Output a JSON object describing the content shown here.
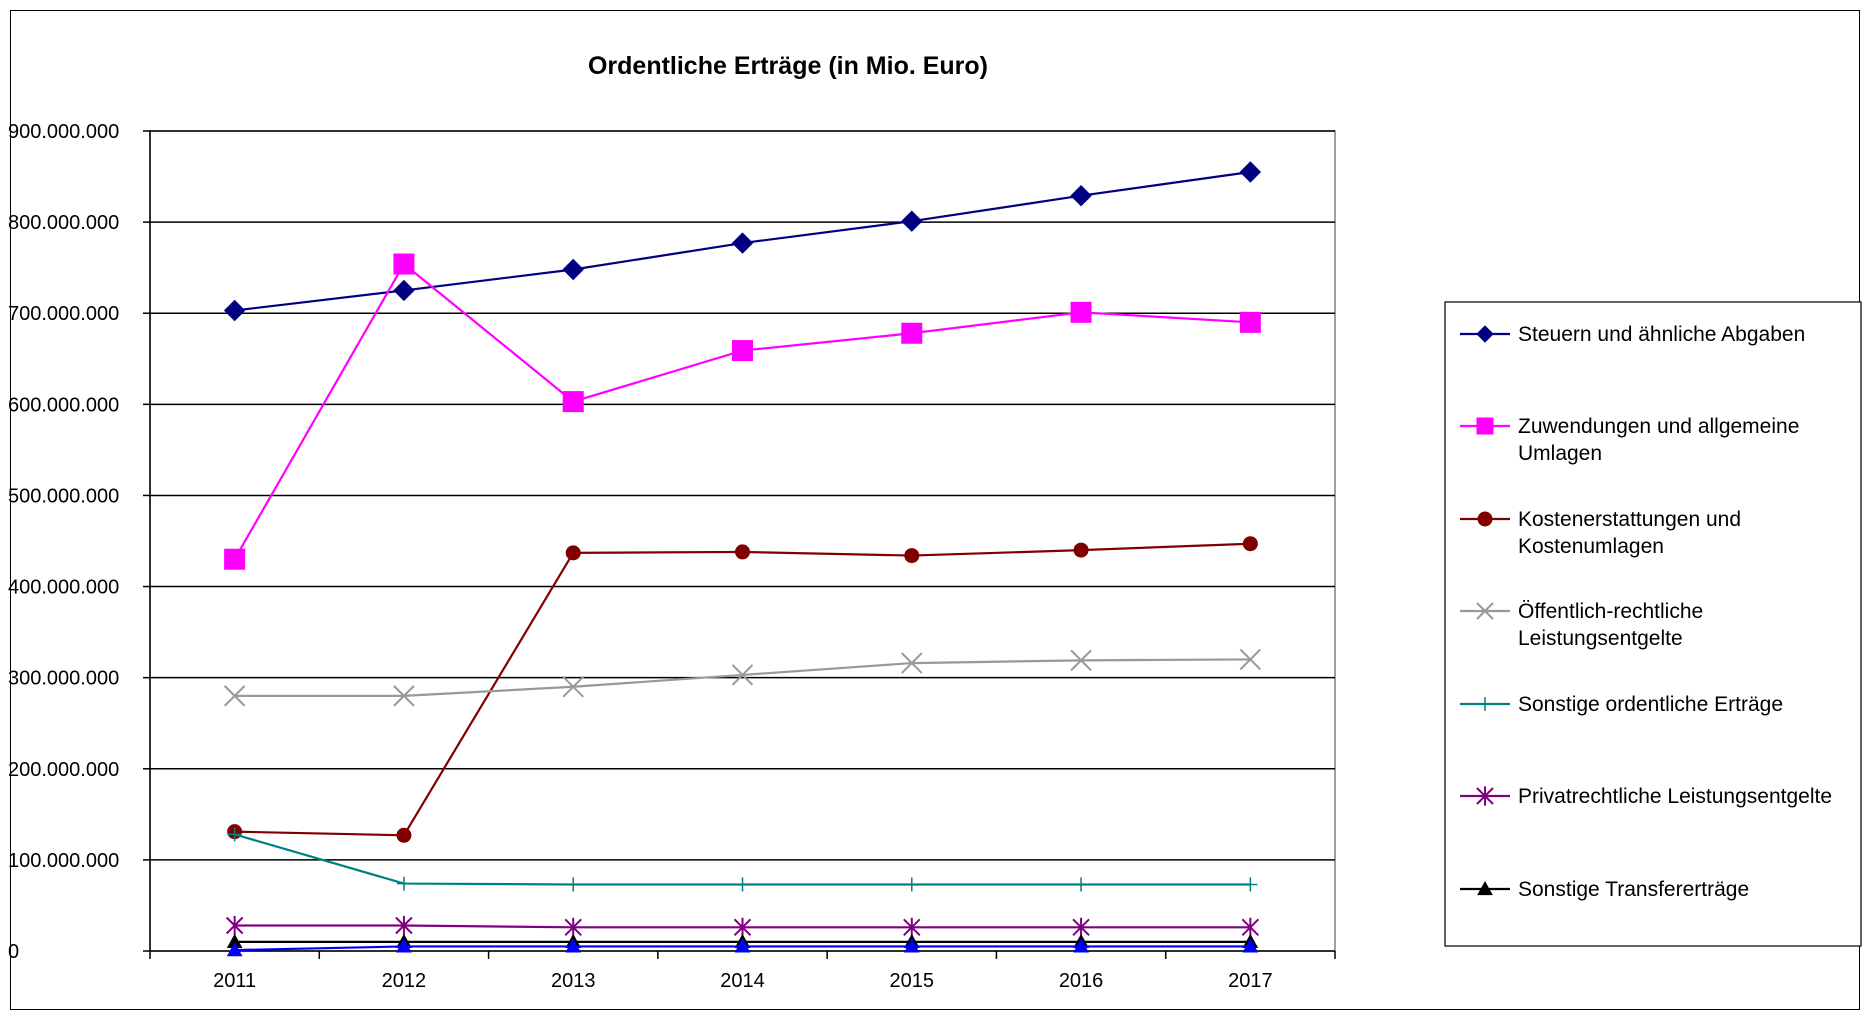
{
  "chart_data": {
    "type": "line",
    "title": "Ordentliche Erträge (in Mio. Euro)",
    "xlabel": "",
    "ylabel": "",
    "ylim": [
      0,
      900000000
    ],
    "y_ticks": [
      0,
      100000000,
      200000000,
      300000000,
      400000000,
      500000000,
      600000000,
      700000000,
      800000000,
      900000000
    ],
    "y_tick_labels": [
      "0",
      "100.000.000",
      "200.000.000",
      "300.000.000",
      "400.000.000",
      "500.000.000",
      "600.000.000",
      "700.000.000",
      "800.000.000",
      "900.000.000"
    ],
    "categories": [
      "2011",
      "2012",
      "2013",
      "2014",
      "2015",
      "2016",
      "2017"
    ],
    "grid": true,
    "legend_position": "right",
    "series": [
      {
        "name": "Steuern und ähnliche Abgaben",
        "label_lines": [
          "Steuern und ähnliche Abgaben"
        ],
        "color": "#000080",
        "marker": "diamond",
        "values": [
          703000000,
          725000000,
          748000000,
          777000000,
          801000000,
          829000000,
          855000000
        ]
      },
      {
        "name": "Zuwendungen und allgemeine Umlagen",
        "label_lines": [
          "Zuwendungen und allgemeine",
          "Umlagen"
        ],
        "color": "#ff00ff",
        "marker": "square",
        "values": [
          430000000,
          754000000,
          603000000,
          659000000,
          678000000,
          701000000,
          690000000
        ]
      },
      {
        "name": "Kostenerstattungen und Kostenumlagen",
        "label_lines": [
          "Kostenerstattungen und",
          "Kostenumlagen"
        ],
        "color": "#800000",
        "marker": "circle",
        "values": [
          131000000,
          127000000,
          437000000,
          438000000,
          434000000,
          440000000,
          447000000
        ]
      },
      {
        "name": "Öffentlich-rechtliche Leistungsentgelte",
        "label_lines": [
          "Öffentlich-rechtliche",
          "Leistungsentgelte"
        ],
        "color": "#999999",
        "marker": "x",
        "values": [
          280000000,
          280000000,
          290000000,
          303000000,
          316000000,
          319000000,
          320000000
        ]
      },
      {
        "name": "Sonstige ordentliche Erträge",
        "label_lines": [
          "Sonstige ordentliche Erträge"
        ],
        "color": "#008080",
        "marker": "plus",
        "values": [
          128000000,
          74000000,
          73000000,
          73000000,
          73000000,
          73000000,
          73000000
        ]
      },
      {
        "name": "Privatrechtliche Leistungsentgelte",
        "label_lines": [
          "Privatrechtliche Leistungsentgelte"
        ],
        "color": "#800080",
        "marker": "star",
        "values": [
          28000000,
          28000000,
          26000000,
          26000000,
          26000000,
          26000000,
          26000000
        ]
      },
      {
        "name": "Sonstige Transfererträge",
        "label_lines": [
          "Sonstige Transfererträge"
        ],
        "color": "#000000",
        "marker": "triangle",
        "values": [
          10000000,
          10000000,
          10000000,
          10000000,
          10000000,
          10000000,
          10000000
        ]
      },
      {
        "name": "",
        "label_lines": [],
        "color": "#0000ff",
        "marker": "triangle",
        "values": [
          1000000,
          5000000,
          5000000,
          5000000,
          5000000,
          5000000,
          5000000
        ]
      }
    ]
  }
}
